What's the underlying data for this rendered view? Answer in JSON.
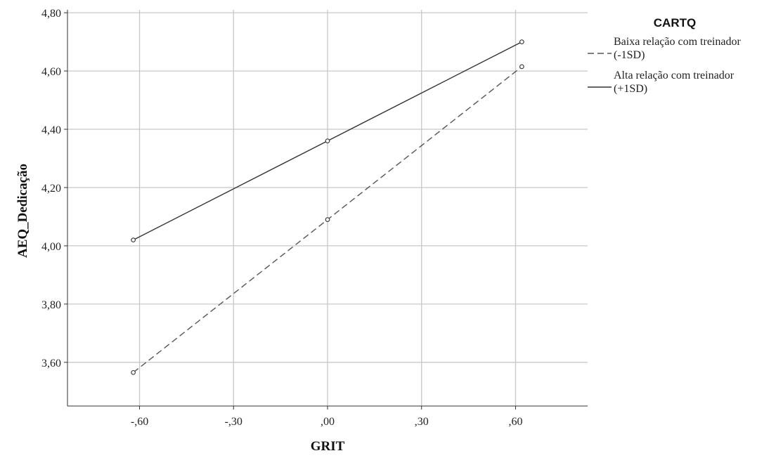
{
  "chart_data": {
    "type": "line",
    "xlabel": "GRIT",
    "ylabel": "AEQ_Dedicação",
    "x": [
      -0.62,
      0.0,
      0.62
    ],
    "xlim": [
      -0.83,
      0.83
    ],
    "ylim": [
      3.45,
      4.81
    ],
    "x_ticks": [
      -0.6,
      -0.3,
      0.0,
      0.3,
      0.6
    ],
    "x_tick_labels": [
      "-,60",
      "-,30",
      ",00",
      ",30",
      ",60"
    ],
    "y_ticks": [
      3.6,
      3.8,
      4.0,
      4.2,
      4.4,
      4.6,
      4.8
    ],
    "y_tick_labels": [
      "3,60",
      "3,80",
      "4,00",
      "4,20",
      "4,40",
      "4,60",
      "4,80"
    ],
    "grid": true,
    "legend": {
      "title": "CARTQ",
      "placement": "right"
    },
    "series": [
      {
        "name_lines": [
          "Baixa relação com treinador",
          "(-1SD)"
        ],
        "style": "dashed",
        "color": "#555555",
        "values": [
          3.565,
          4.09,
          4.615
        ]
      },
      {
        "name_lines": [
          "Alta relação com treinador",
          "(+1SD)"
        ],
        "style": "solid",
        "color": "#333333",
        "values": [
          4.02,
          4.36,
          4.7
        ]
      }
    ]
  }
}
